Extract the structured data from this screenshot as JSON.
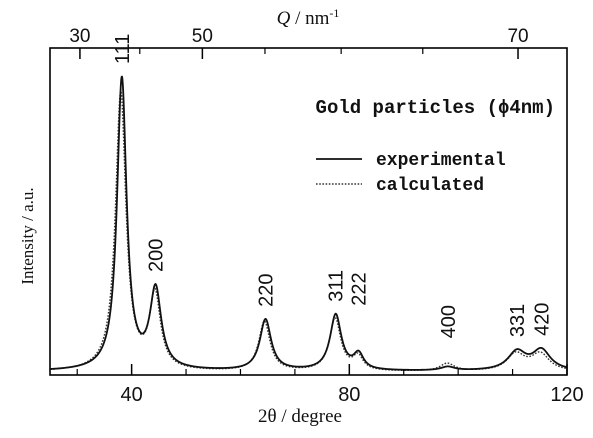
{
  "chart_data": {
    "type": "line",
    "title": "Gold particles (ϕ4nm)",
    "xlabel": "2θ  / degree",
    "ylabel": "Intensity / a.u.",
    "top_axis_label_italic": "Q",
    "top_axis_label_rest": " / nm",
    "top_axis_label_sup": "-1",
    "xlim": [
      25,
      120
    ],
    "ylim": [
      0,
      1.0
    ],
    "grid": false,
    "legend_position": "top-right",
    "x_ticks": [
      40,
      80,
      120
    ],
    "top_ticks": [
      {
        "label": "30",
        "two_theta": 30.5
      },
      {
        "label": "50",
        "two_theta": 53.0
      },
      {
        "label": "70",
        "two_theta": 111.0
      }
    ],
    "peak_labels": [
      {
        "text": "111",
        "x": 38.2
      },
      {
        "text": "200",
        "x": 44.4
      },
      {
        "text": "220",
        "x": 64.6
      },
      {
        "text": "311",
        "x": 77.5
      },
      {
        "text": "222",
        "x": 81.7
      },
      {
        "text": "400",
        "x": 98.1
      },
      {
        "text": "331",
        "x": 110.8
      },
      {
        "text": "420",
        "x": 115.3
      }
    ],
    "series": [
      {
        "name": "experimental",
        "style": "solid",
        "color": "#111111",
        "baseline": 0.012,
        "peaks": [
          {
            "center": 38.2,
            "height": 0.945,
            "width": 1.05
          },
          {
            "center": 44.4,
            "height": 0.255,
            "width": 1.25
          },
          {
            "center": 64.6,
            "height": 0.165,
            "width": 1.25
          },
          {
            "center": 77.5,
            "height": 0.18,
            "width": 1.25
          },
          {
            "center": 81.7,
            "height": 0.05,
            "width": 1.1
          },
          {
            "center": 98.1,
            "height": 0.012,
            "width": 1.5
          },
          {
            "center": 110.8,
            "height": 0.06,
            "width": 2.0
          },
          {
            "center": 115.3,
            "height": 0.065,
            "width": 2.0
          }
        ]
      },
      {
        "name": "calculated",
        "style": "dotted",
        "color": "#333333",
        "baseline": 0.01,
        "peaks": [
          {
            "center": 38.0,
            "height": 0.9,
            "width": 1.15
          },
          {
            "center": 44.3,
            "height": 0.24,
            "width": 1.2
          },
          {
            "center": 64.4,
            "height": 0.16,
            "width": 1.25
          },
          {
            "center": 77.4,
            "height": 0.17,
            "width": 1.25
          },
          {
            "center": 81.6,
            "height": 0.045,
            "width": 1.1
          },
          {
            "center": 98.0,
            "height": 0.025,
            "width": 1.6
          },
          {
            "center": 110.6,
            "height": 0.055,
            "width": 2.0
          },
          {
            "center": 115.1,
            "height": 0.055,
            "width": 2.0
          }
        ]
      }
    ]
  }
}
